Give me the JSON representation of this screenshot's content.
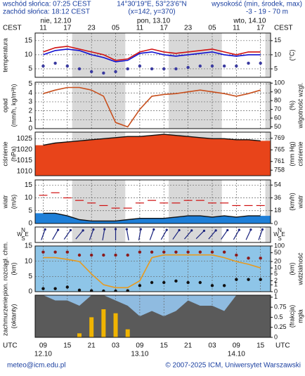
{
  "header": {
    "sunrise": "wschód słońca: 07:25 CEST",
    "sunset": "zachód słońca: 18:12 CEST",
    "coords": "14°30'19\"E, 53°23'6\"N",
    "grid": "(x=142, y=370)",
    "elevation_title": "wysokość (min, środek, max)",
    "elevation": "-3 - 19 - 70 m"
  },
  "time_axis": {
    "top_label": "CEST",
    "bottom_label": "UTC",
    "top_dates": [
      "nie, 12.10",
      "pon, 13.10",
      "wto, 14.10"
    ],
    "bottom_dates": [
      "12.10",
      "13.10",
      "14.10"
    ],
    "xlim": [
      7,
      65.5
    ],
    "x": [
      9,
      12,
      15,
      18,
      21,
      24,
      27,
      30,
      33,
      36,
      39,
      42,
      45,
      48,
      51,
      54,
      57,
      60,
      63
    ],
    "top_ticks": [
      {
        "value": 9,
        "label": "11"
      },
      {
        "value": 15,
        "label": "17"
      },
      {
        "value": 21,
        "label": "23"
      },
      {
        "value": 27,
        "label": "05"
      },
      {
        "value": 33,
        "label": "11"
      },
      {
        "value": 39,
        "label": "17"
      },
      {
        "value": 45,
        "label": "23"
      },
      {
        "value": 51,
        "label": "05"
      },
      {
        "value": 57,
        "label": "11"
      },
      {
        "value": 63,
        "label": "17"
      }
    ],
    "bottom_ticks": [
      {
        "value": 9,
        "label": "09"
      },
      15,
      21,
      {
        "value": 27,
        "label": "03"
      },
      {
        "value": 33,
        "label": "09"
      },
      {
        "value": 39,
        "label": "15"
      },
      {
        "value": 45,
        "label": "21"
      },
      {
        "value": 51,
        "label": "03"
      },
      {
        "value": 57,
        "label": "09"
      },
      {
        "value": 63,
        "label": "15"
      }
    ]
  },
  "chart_data": [
    {
      "type": "line",
      "left_labels": [
        "temperatura"
      ],
      "right_labels": [
        "(°C)"
      ],
      "ylim": [
        2,
        17.7
      ],
      "yticks": [
        15,
        10,
        5
      ],
      "y2lim": [
        2,
        17.7
      ],
      "y2ticks": [
        15,
        10,
        5
      ],
      "series": [
        {
          "style": "line",
          "color": "#d01010",
          "values": [
            11,
            12.5,
            13,
            12,
            11,
            10,
            8,
            8.5,
            11,
            12,
            11,
            10.5,
            11,
            11.5,
            12,
            11,
            10,
            11,
            11
          ]
        },
        {
          "style": "line",
          "color": "#1010d0",
          "values": [
            10,
            11.5,
            12,
            11.5,
            10,
            9,
            7.5,
            8,
            10.5,
            11,
            10,
            9.5,
            10,
            10.5,
            11,
            10,
            9.5,
            10,
            10
          ]
        },
        {
          "style": "dots",
          "color": "#3a3aa0",
          "values": [
            6,
            7,
            6,
            5,
            4,
            3.5,
            4,
            5,
            6,
            5,
            5,
            5,
            5.5,
            6,
            6,
            6,
            6,
            7,
            7
          ]
        }
      ]
    },
    {
      "type": "line",
      "left_labels": [
        "opad",
        "(mm/h, kg/m²h)"
      ],
      "right_labels": [
        "(%)",
        "wilgotność wzgl."
      ],
      "ylim": [
        0,
        5.2
      ],
      "yticks": [
        5,
        4,
        3,
        2,
        1,
        0
      ],
      "y2lim": [
        48,
        101
      ],
      "y2ticks": [
        100,
        90,
        80,
        70,
        60,
        50
      ],
      "series": [
        {
          "style": "line",
          "color": "#c8501e",
          "axis": "y2",
          "values": [
            88,
            92,
            95,
            95,
            92,
            85,
            55,
            50,
            70,
            85,
            87,
            88,
            90,
            92,
            90,
            88,
            85,
            88,
            92
          ]
        },
        {
          "style": "bars",
          "color": "#1a8a1a",
          "values": [
            0,
            0,
            0,
            0,
            0,
            0,
            0,
            0,
            0,
            0,
            0,
            0,
            0,
            0,
            0,
            0,
            0,
            0,
            0
          ]
        }
      ]
    },
    {
      "type": "line",
      "left_labels": [
        "ciśnienie",
        "(hPa)"
      ],
      "right_labels": [
        "(mm Hg)",
        "ciśnienie"
      ],
      "ylim": [
        1008,
        1028
      ],
      "yticks": [
        1025,
        1020,
        1015,
        1010
      ],
      "y2lim": [
        756.1,
        771.1
      ],
      "y2ticks": [
        769,
        765,
        761,
        758
      ],
      "series": [
        {
          "style": "area",
          "color": "#e8441a",
          "line": "#111",
          "values": [
            1022,
            1023,
            1023.5,
            1024,
            1024.5,
            1025,
            1025.5,
            1026,
            1026,
            1026.5,
            1027,
            1026.5,
            1026,
            1025.5,
            1025,
            1025,
            1024.5,
            1024.5,
            1024
          ]
        }
      ]
    },
    {
      "type": "line",
      "left_labels": [
        "wiatr",
        "(m/s)"
      ],
      "right_labels": [
        "(km/h)",
        "wiatr"
      ],
      "ylim": [
        0,
        17
      ],
      "yticks": [
        15,
        10,
        5,
        0
      ],
      "y2lim": [
        0,
        61.2
      ],
      "y2ticks": [
        54,
        36,
        18,
        0
      ],
      "series": [
        {
          "style": "area",
          "color": "#1e7fd8",
          "line": "#111",
          "values": [
            4,
            4,
            3,
            1.5,
            1,
            1,
            1,
            1.5,
            2,
            2,
            2,
            2.5,
            3,
            3,
            2.5,
            3,
            2.5,
            3,
            3
          ]
        },
        {
          "style": "dashes",
          "color": "#d01010",
          "values": [
            11,
            12,
            10,
            9,
            8,
            7,
            6,
            6,
            8,
            9,
            8,
            8,
            9,
            9,
            8,
            8,
            7,
            7,
            7
          ]
        }
      ]
    },
    {
      "type": "arrows",
      "compass": {
        "n": "N",
        "s": "S",
        "w": "W",
        "e": "E"
      },
      "color": "#1a237e",
      "values": [
        200,
        210,
        215,
        220,
        200,
        190,
        180,
        170,
        190,
        200,
        210,
        215,
        220,
        225,
        220,
        215,
        210,
        205,
        200
      ]
    },
    {
      "type": "line",
      "left_labels": [
        "pion. rozciągł. chm.",
        "(km)"
      ],
      "right_labels": [
        "(km)",
        "widzialność"
      ],
      "background": "#8ec5e8",
      "ylim": [
        0,
        15
      ],
      "yticks": [
        15,
        10,
        5,
        0
      ],
      "y2scale": "log1p",
      "y2lim": [
        0,
        100
      ],
      "y2ticks": [
        100,
        50,
        20,
        10,
        5,
        2,
        1,
        0
      ],
      "series": [
        {
          "style": "line",
          "color": "#e89a1e",
          "axis": "y2",
          "values": [
            30,
            30,
            25,
            20,
            5,
            1,
            0.5,
            0.5,
            2,
            30,
            40,
            40,
            40,
            40,
            40,
            30,
            20,
            15,
            10
          ]
        },
        {
          "style": "dots",
          "color": "#8b1a1a",
          "values": [
            13,
            13,
            13,
            12,
            12,
            12,
            12,
            12,
            13,
            13,
            13,
            13,
            13,
            13,
            13,
            13,
            12,
            11,
            11
          ]
        },
        {
          "style": "dots",
          "color": "#111",
          "values": [
            1,
            1,
            1.5,
            0.5,
            0.3,
            0.2,
            0.2,
            0.3,
            2,
            3,
            3,
            3.5,
            3,
            3,
            2,
            2,
            4,
            4,
            4
          ]
        }
      ]
    },
    {
      "type": "line",
      "left_labels": [
        "zachmurzenie",
        "(oktanty)"
      ],
      "right_labels": [
        "(frakcja)",
        "mgła"
      ],
      "background": "#8fbbe0",
      "ylim": [
        0,
        8
      ],
      "y2lim": [
        0,
        1.05
      ],
      "y2ticks": [
        1,
        0.75,
        0.5,
        0.25,
        0
      ],
      "series": [
        {
          "style": "area",
          "color": "#5a5a5a",
          "values": [
            8,
            7,
            7,
            6,
            8,
            8,
            7,
            6,
            4,
            5,
            4,
            5,
            7,
            6,
            6,
            5,
            8,
            8,
            8
          ]
        },
        {
          "style": "bars",
          "color": "#f0b400",
          "axis": "y2",
          "values": [
            0,
            0,
            0,
            0.1,
            0.5,
            0.7,
            0.6,
            0.2,
            0,
            0,
            0,
            0,
            0,
            0,
            0,
            0,
            0,
            0,
            0
          ]
        }
      ]
    }
  ],
  "footer": {
    "email": "meteo@icm.edu.pl",
    "copyright": "© 2007-2025 ICM, Uniwersytet Warszawski"
  }
}
